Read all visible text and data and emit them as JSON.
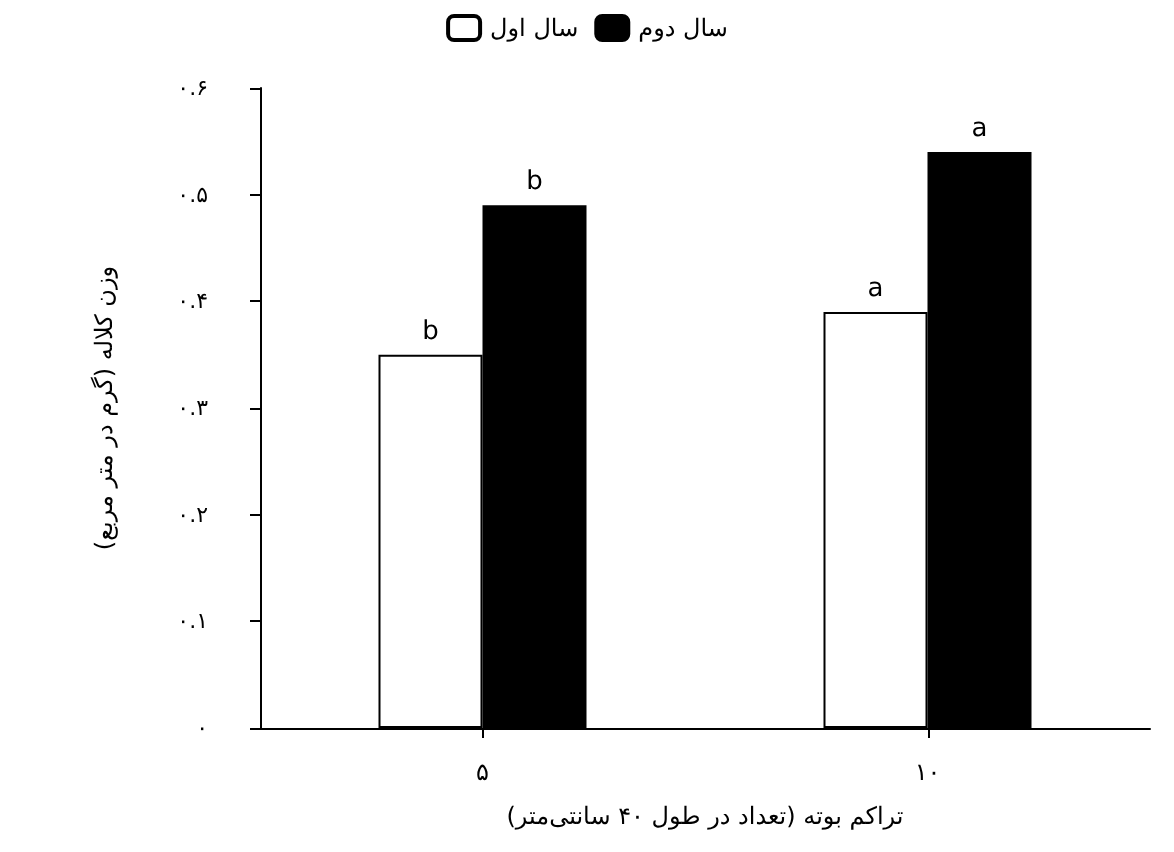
{
  "chart_data": {
    "type": "bar",
    "xlabel": "تراکم بوته (تعداد در طول ۴۰ سانتی‌متر)",
    "ylabel": "وزن کلاله (گرم در متر مربع)",
    "categories": [
      "۵",
      "۱۰"
    ],
    "series": [
      {
        "name": "سال اول",
        "color": "#ffffff",
        "values": [
          0.35,
          0.39
        ],
        "value_labels": [
          "b",
          "a"
        ]
      },
      {
        "name": "سال دوم",
        "color": "#000000",
        "values": [
          0.49,
          0.54
        ],
        "value_labels": [
          "b",
          "a"
        ]
      }
    ],
    "ylim": [
      0,
      0.6
    ],
    "yticks": [
      {
        "value": 0,
        "label": "۰"
      },
      {
        "value": 0.1,
        "label": "۰.۱"
      },
      {
        "value": 0.2,
        "label": "۰.۲"
      },
      {
        "value": 0.3,
        "label": "۰.۳"
      },
      {
        "value": 0.4,
        "label": "۰.۴"
      },
      {
        "value": 0.5,
        "label": "۰.۵"
      },
      {
        "value": 0.6,
        "label": "۰.۶"
      }
    ],
    "grid": false,
    "legend": "top"
  }
}
